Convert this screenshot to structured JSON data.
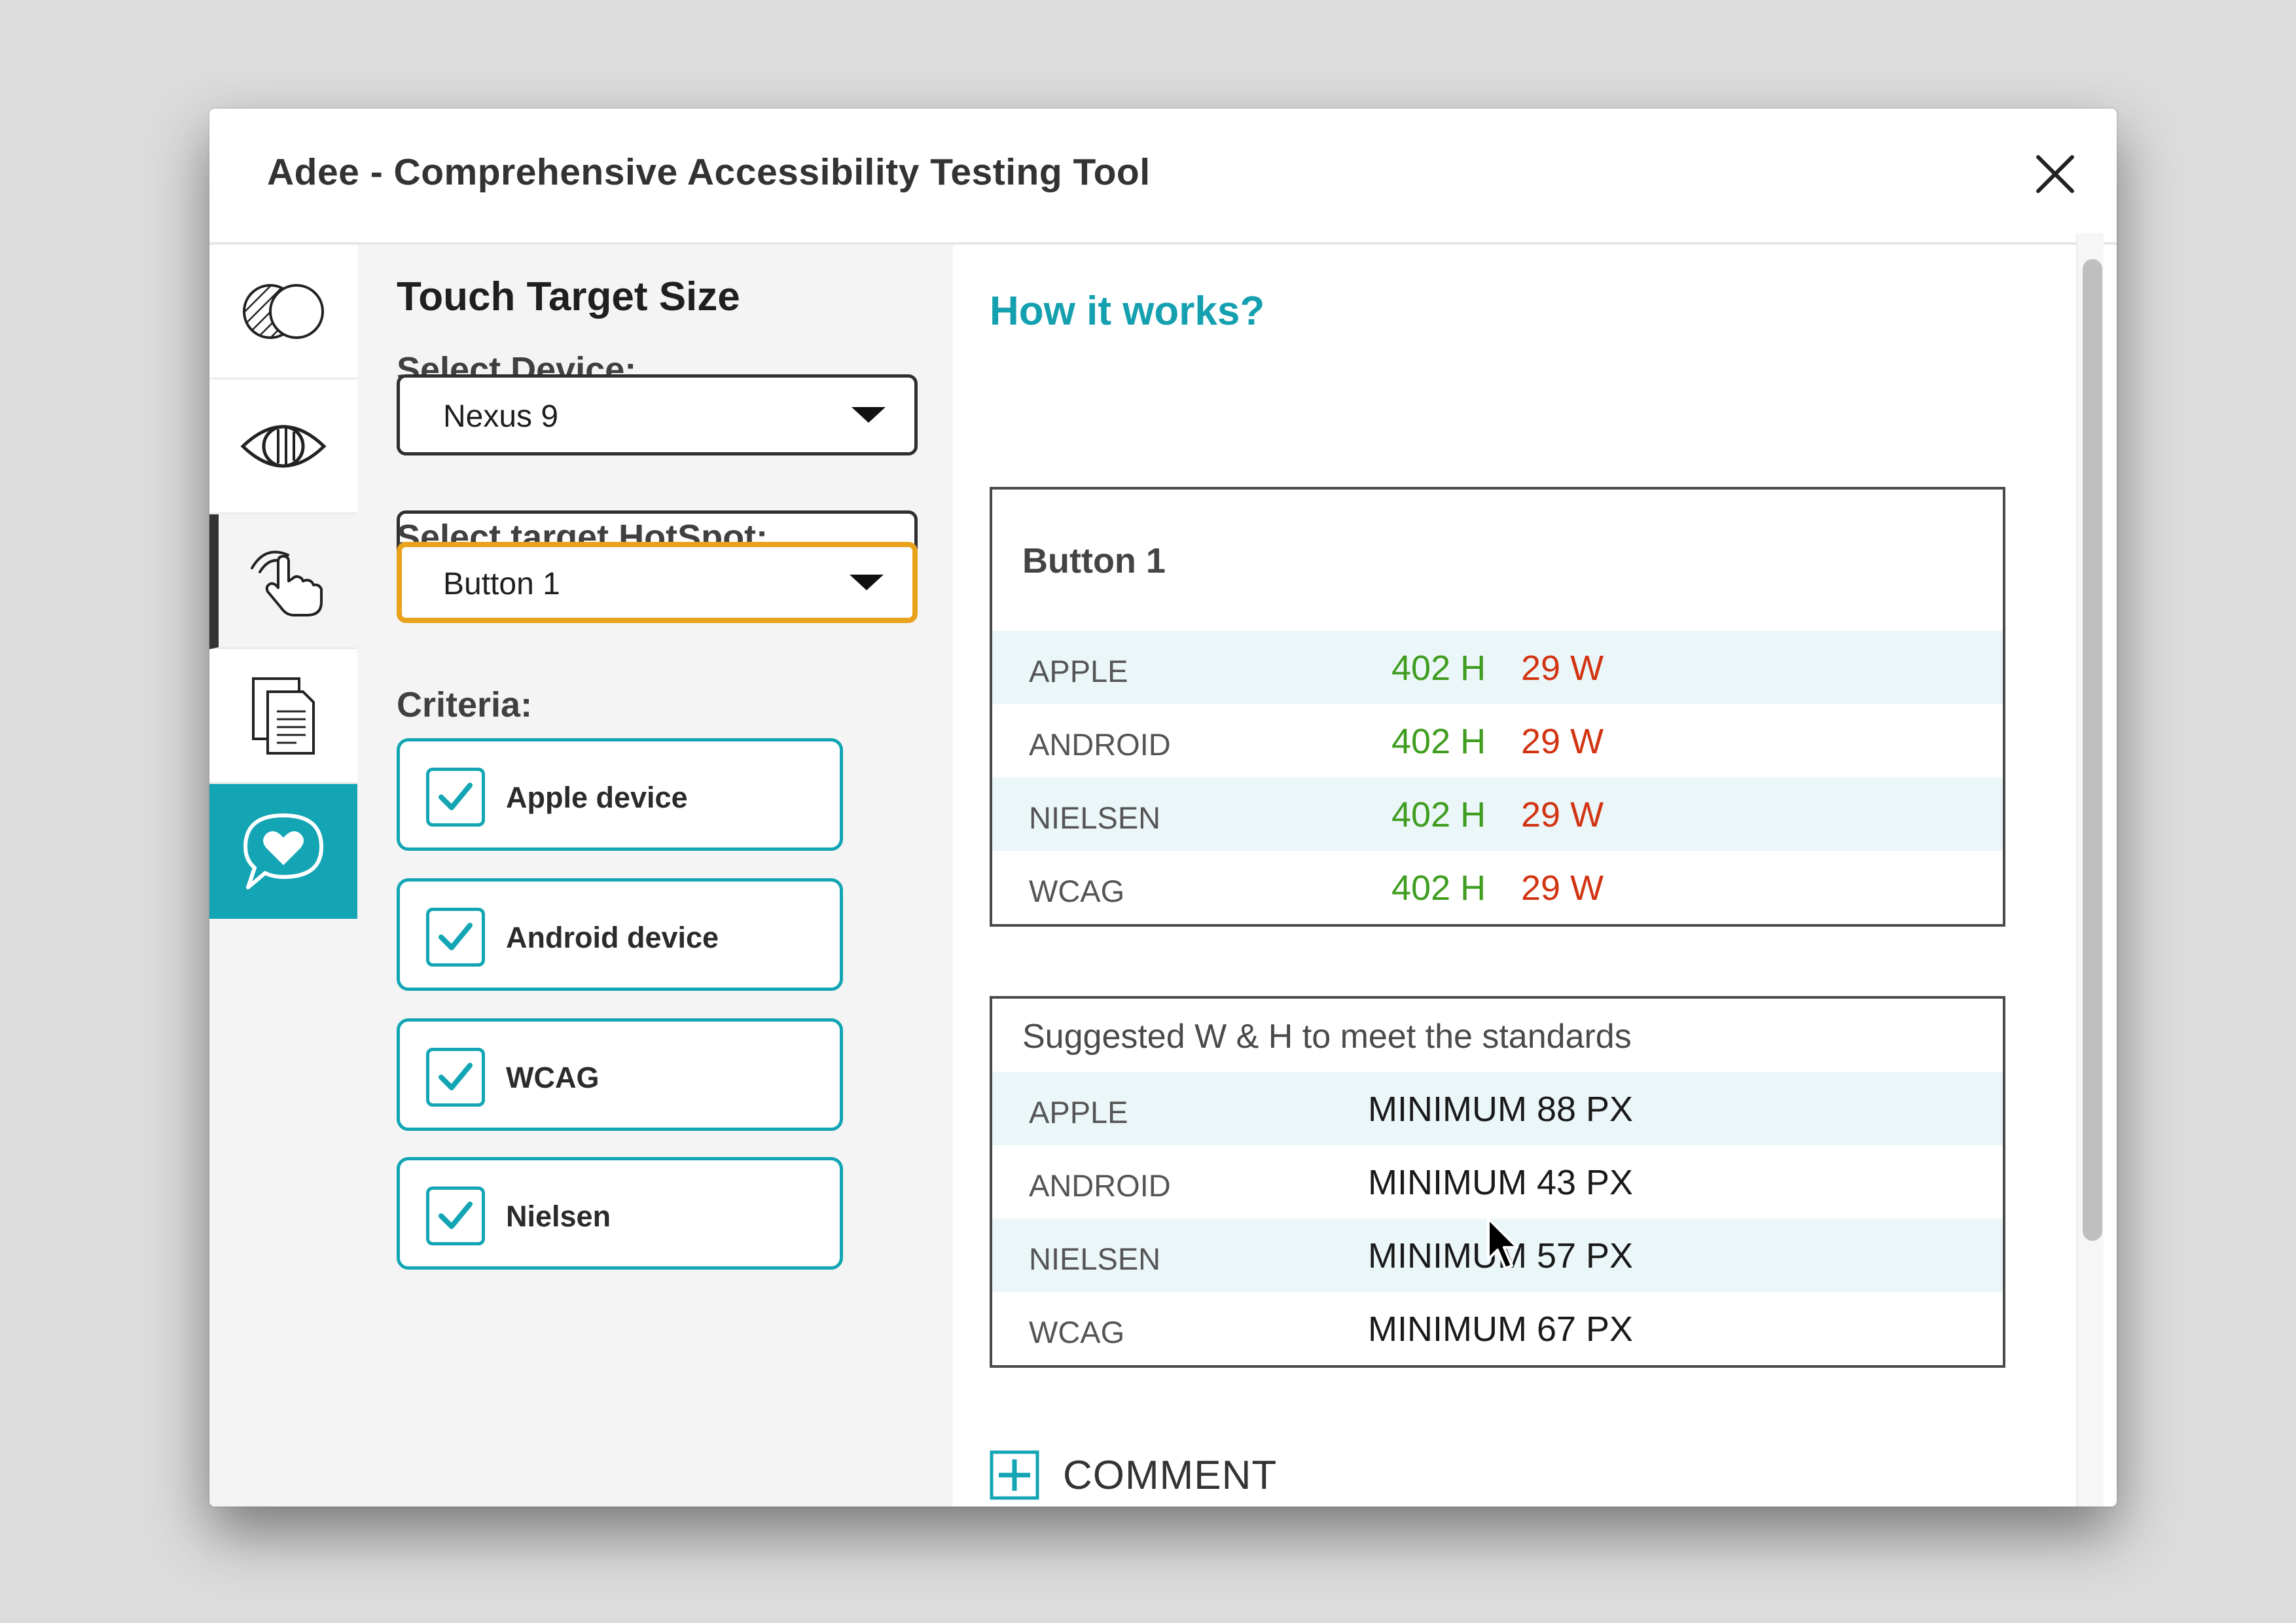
{
  "window": {
    "title": "Adee - Comprehensive Accessibility Testing Tool"
  },
  "rail": {
    "items": [
      "contrast-icon",
      "eye-icon",
      "touch-hand-icon",
      "document-icon",
      "heart-chat-icon"
    ],
    "active": "touch-hand-icon"
  },
  "panel": {
    "title": "Touch Target Size",
    "device_label": "Select Device:",
    "device_value": "Nexus 9",
    "hotspot_label": "Select target HotSpot:",
    "hotspot_value": "Button 1",
    "criteria_label": "Criteria:",
    "criteria": [
      {
        "label": "Apple device",
        "checked": true
      },
      {
        "label": "Android device",
        "checked": true
      },
      {
        "label": "WCAG",
        "checked": true
      },
      {
        "label": "Nielsen",
        "checked": true
      }
    ]
  },
  "main": {
    "how_title": "How it works?",
    "results": {
      "title": "Button 1",
      "rows": [
        {
          "label": "APPLE",
          "h": "402 H",
          "w": "29 W"
        },
        {
          "label": "ANDROID",
          "h": "402 H",
          "w": "29 W"
        },
        {
          "label": "NIELSEN",
          "h": "402 H",
          "w": "29 W"
        },
        {
          "label": "WCAG",
          "h": "402 H",
          "w": "29 W"
        }
      ]
    },
    "suggested": {
      "title": "Suggested W & H to meet the standards",
      "rows": [
        {
          "label": "APPLE",
          "value": "MINIMUM 88 PX"
        },
        {
          "label": "ANDROID",
          "value": "MINIMUM 43 PX"
        },
        {
          "label": "NIELSEN",
          "value": "MINIMUM 57 PX"
        },
        {
          "label": "WCAG",
          "value": "MINIMUM 67 PX"
        }
      ]
    },
    "comment_label": "COMMENT"
  },
  "colors": {
    "accent": "#13a5b4",
    "focus": "#e8a21c",
    "pass": "#3f9d1f",
    "fail": "#d23412"
  }
}
